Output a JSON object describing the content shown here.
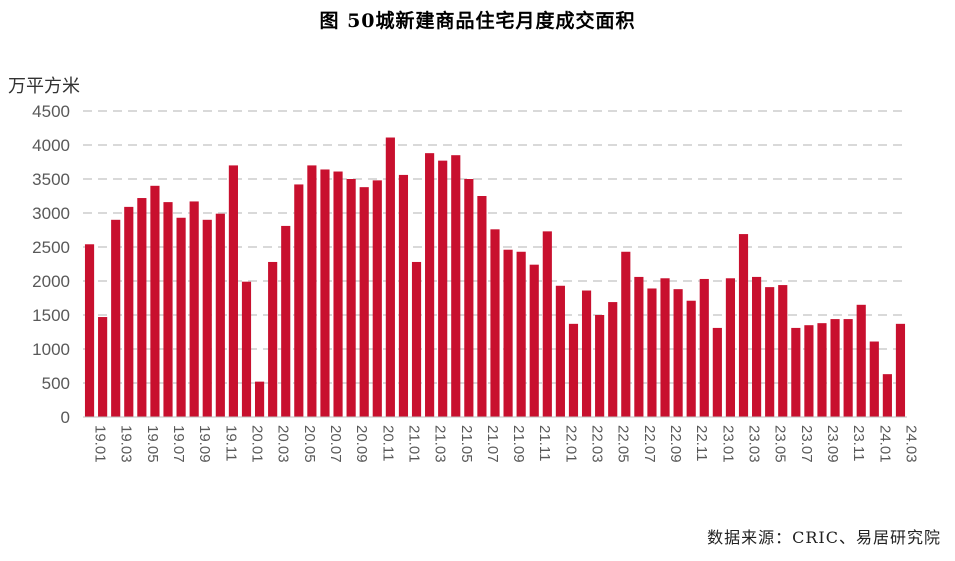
{
  "chart_data": {
    "type": "bar",
    "title": "图 50城新建商品住宅月度成交面积",
    "ylabel": "万平方米",
    "ylim": [
      0,
      4500
    ],
    "yticks": [
      0,
      500,
      1000,
      1500,
      2000,
      2500,
      3000,
      3500,
      4000,
      4500
    ],
    "grid": true,
    "bar_color": "#C8102E",
    "categories": [
      "19.01",
      "19.02",
      "19.03",
      "19.04",
      "19.05",
      "19.06",
      "19.07",
      "19.08",
      "19.09",
      "19.10",
      "19.11",
      "19.12",
      "20.01",
      "20.02",
      "20.03",
      "20.04",
      "20.05",
      "20.06",
      "20.07",
      "20.08",
      "20.09",
      "20.10",
      "20.11",
      "20.12",
      "21.01",
      "21.02",
      "21.03",
      "21.04",
      "21.05",
      "21.06",
      "21.07",
      "21.08",
      "21.09",
      "21.10",
      "21.11",
      "21.12",
      "22.01",
      "22.02",
      "22.03",
      "22.04",
      "22.05",
      "22.06",
      "22.07",
      "22.08",
      "22.09",
      "22.10",
      "22.11",
      "22.12",
      "23.01",
      "23.02",
      "23.03",
      "23.04",
      "23.05",
      "23.06",
      "23.07",
      "23.08",
      "23.09",
      "23.10",
      "23.11",
      "23.12",
      "24.01",
      "24.02",
      "24.03"
    ],
    "xtick_labels": [
      "19.01",
      "19.03",
      "19.05",
      "19.07",
      "19.09",
      "19.11",
      "20.01",
      "20.03",
      "20.05",
      "20.07",
      "20.09",
      "20.11",
      "21.01",
      "21.03",
      "21.05",
      "21.07",
      "21.09",
      "21.11",
      "22.01",
      "22.03",
      "22.05",
      "22.07",
      "22.09",
      "22.11",
      "23.01",
      "23.03",
      "23.05",
      "23.07",
      "23.09",
      "23.11",
      "24.01",
      "24.03"
    ],
    "values": [
      2540,
      1470,
      2900,
      3090,
      3220,
      3400,
      3160,
      2930,
      3170,
      2900,
      2990,
      3700,
      1990,
      520,
      2280,
      2810,
      3420,
      3700,
      3640,
      3610,
      3500,
      3380,
      3480,
      4110,
      3560,
      2280,
      3880,
      3770,
      3850,
      3500,
      3250,
      2760,
      2460,
      2430,
      2240,
      2730,
      1930,
      1370,
      1860,
      1500,
      1690,
      2430,
      2060,
      1890,
      2040,
      1880,
      1710,
      2030,
      1310,
      2040,
      2690,
      2060,
      1910,
      1940,
      1310,
      1350,
      1380,
      1440,
      1440,
      1650,
      1110,
      630,
      1370
    ]
  },
  "source": "数据来源：CRIC、易居研究院"
}
